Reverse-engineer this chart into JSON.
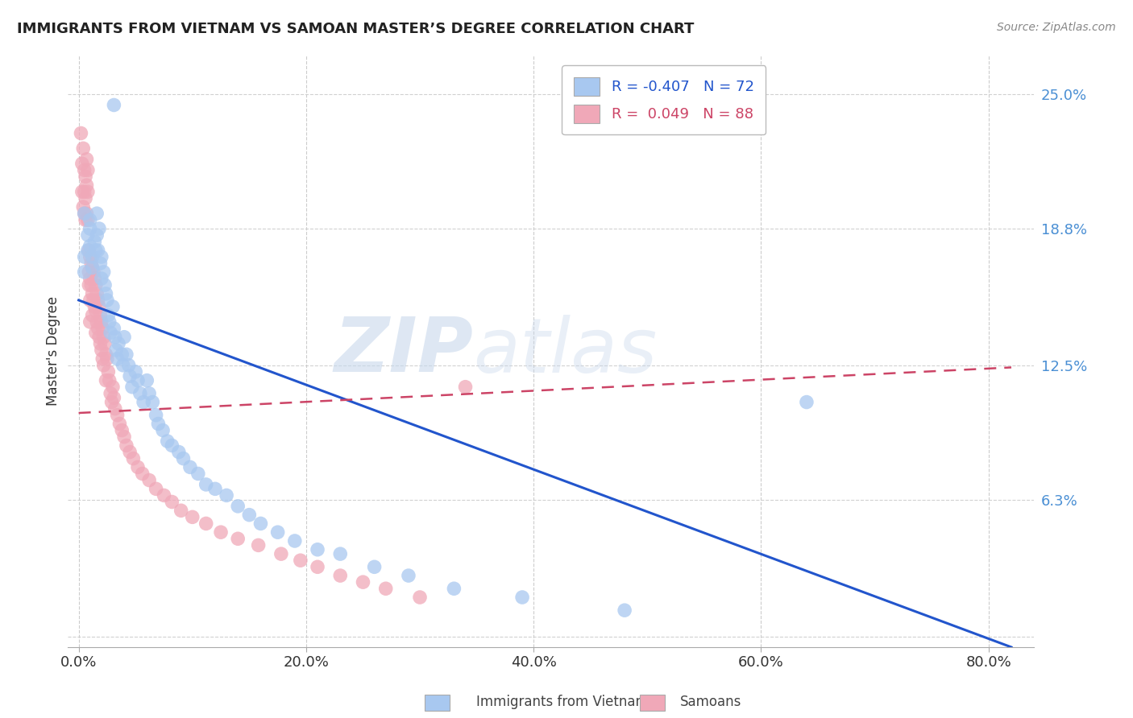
{
  "title": "IMMIGRANTS FROM VIETNAM VS SAMOAN MASTER’S DEGREE CORRELATION CHART",
  "source": "Source: ZipAtlas.com",
  "ylabel": "Master's Degree",
  "yticks": [
    0.0,
    0.063,
    0.125,
    0.188,
    0.25
  ],
  "ytick_labels": [
    "",
    "6.3%",
    "12.5%",
    "18.8%",
    "25.0%"
  ],
  "xticks": [
    0.0,
    0.2,
    0.4,
    0.6,
    0.8
  ],
  "xtick_labels": [
    "0.0%",
    "20.0%",
    "40.0%",
    "60.0%",
    "80.0%"
  ],
  "xlim": [
    -0.01,
    0.84
  ],
  "ylim": [
    -0.005,
    0.268
  ],
  "blue_color": "#A8C8F0",
  "pink_color": "#F0A8B8",
  "trend_blue_color": "#2255CC",
  "trend_pink_color": "#CC4466",
  "blue_trend_x": [
    0.0,
    0.82
  ],
  "blue_trend_y": [
    0.155,
    -0.005
  ],
  "pink_trend_x": [
    0.0,
    0.82
  ],
  "pink_trend_y": [
    0.103,
    0.124
  ],
  "legend_line1": "R = -0.407   N = 72",
  "legend_line2": "R =  0.049   N = 88",
  "series1_label": "Immigrants from Vietnam",
  "series2_label": "Samoans",
  "watermark_zip": "ZIP",
  "watermark_atlas": "atlas",
  "blue_x": [
    0.031,
    0.005,
    0.005,
    0.005,
    0.008,
    0.008,
    0.01,
    0.01,
    0.01,
    0.012,
    0.012,
    0.014,
    0.015,
    0.016,
    0.016,
    0.017,
    0.018,
    0.019,
    0.02,
    0.02,
    0.022,
    0.023,
    0.024,
    0.025,
    0.026,
    0.027,
    0.028,
    0.03,
    0.031,
    0.032,
    0.033,
    0.034,
    0.035,
    0.038,
    0.039,
    0.04,
    0.042,
    0.044,
    0.045,
    0.047,
    0.05,
    0.052,
    0.054,
    0.057,
    0.06,
    0.062,
    0.065,
    0.068,
    0.07,
    0.074,
    0.078,
    0.082,
    0.088,
    0.092,
    0.098,
    0.105,
    0.112,
    0.12,
    0.13,
    0.14,
    0.15,
    0.16,
    0.175,
    0.19,
    0.21,
    0.23,
    0.26,
    0.29,
    0.33,
    0.39,
    0.48,
    0.64
  ],
  "blue_y": [
    0.245,
    0.195,
    0.175,
    0.168,
    0.185,
    0.178,
    0.192,
    0.188,
    0.18,
    0.175,
    0.17,
    0.182,
    0.178,
    0.195,
    0.185,
    0.178,
    0.188,
    0.172,
    0.165,
    0.175,
    0.168,
    0.162,
    0.158,
    0.155,
    0.148,
    0.145,
    0.14,
    0.152,
    0.142,
    0.138,
    0.132,
    0.128,
    0.135,
    0.13,
    0.125,
    0.138,
    0.13,
    0.125,
    0.12,
    0.115,
    0.122,
    0.118,
    0.112,
    0.108,
    0.118,
    0.112,
    0.108,
    0.102,
    0.098,
    0.095,
    0.09,
    0.088,
    0.085,
    0.082,
    0.078,
    0.075,
    0.07,
    0.068,
    0.065,
    0.06,
    0.056,
    0.052,
    0.048,
    0.044,
    0.04,
    0.038,
    0.032,
    0.028,
    0.022,
    0.018,
    0.012,
    0.108
  ],
  "pink_x": [
    0.002,
    0.003,
    0.003,
    0.004,
    0.004,
    0.005,
    0.005,
    0.005,
    0.006,
    0.006,
    0.006,
    0.007,
    0.007,
    0.007,
    0.008,
    0.008,
    0.008,
    0.009,
    0.009,
    0.009,
    0.01,
    0.01,
    0.01,
    0.01,
    0.011,
    0.011,
    0.012,
    0.012,
    0.012,
    0.013,
    0.013,
    0.014,
    0.014,
    0.015,
    0.015,
    0.015,
    0.016,
    0.016,
    0.017,
    0.017,
    0.018,
    0.018,
    0.019,
    0.019,
    0.02,
    0.02,
    0.021,
    0.021,
    0.022,
    0.022,
    0.023,
    0.024,
    0.024,
    0.025,
    0.026,
    0.027,
    0.028,
    0.029,
    0.03,
    0.031,
    0.032,
    0.034,
    0.036,
    0.038,
    0.04,
    0.042,
    0.045,
    0.048,
    0.052,
    0.056,
    0.062,
    0.068,
    0.075,
    0.082,
    0.09,
    0.1,
    0.112,
    0.125,
    0.14,
    0.158,
    0.178,
    0.195,
    0.21,
    0.23,
    0.25,
    0.27,
    0.3,
    0.34
  ],
  "pink_y": [
    0.232,
    0.218,
    0.205,
    0.225,
    0.198,
    0.215,
    0.205,
    0.195,
    0.212,
    0.202,
    0.192,
    0.22,
    0.208,
    0.195,
    0.215,
    0.205,
    0.192,
    0.168,
    0.178,
    0.162,
    0.175,
    0.165,
    0.155,
    0.145,
    0.172,
    0.162,
    0.17,
    0.158,
    0.148,
    0.168,
    0.155,
    0.165,
    0.152,
    0.162,
    0.15,
    0.14,
    0.158,
    0.145,
    0.155,
    0.142,
    0.152,
    0.138,
    0.148,
    0.135,
    0.145,
    0.132,
    0.142,
    0.128,
    0.138,
    0.125,
    0.135,
    0.13,
    0.118,
    0.128,
    0.122,
    0.118,
    0.112,
    0.108,
    0.115,
    0.11,
    0.105,
    0.102,
    0.098,
    0.095,
    0.092,
    0.088,
    0.085,
    0.082,
    0.078,
    0.075,
    0.072,
    0.068,
    0.065,
    0.062,
    0.058,
    0.055,
    0.052,
    0.048,
    0.045,
    0.042,
    0.038,
    0.035,
    0.032,
    0.028,
    0.025,
    0.022,
    0.018,
    0.115
  ]
}
